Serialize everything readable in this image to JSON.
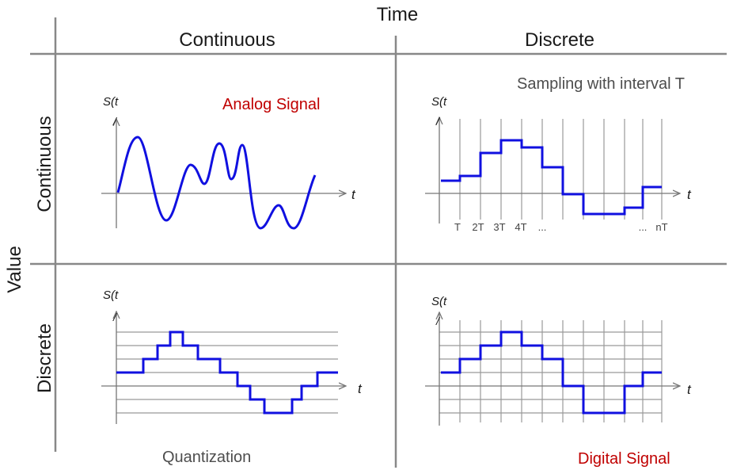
{
  "header": {
    "time_label": "Time",
    "value_label": "Value",
    "col_continuous": "Continuous",
    "col_discrete": "Discrete",
    "row_continuous": "Continuous",
    "row_discrete": "Discrete"
  },
  "panels": {
    "analog": {
      "title": "Analog Signal",
      "y_axis": "S(t",
      "x_axis": "t"
    },
    "sampling": {
      "title": "Sampling with interval T",
      "y_axis": "S(t",
      "x_axis": "t",
      "tick_labels": [
        "T",
        "2T",
        "3T",
        "4T",
        "...",
        "...",
        "nT"
      ]
    },
    "quantization": {
      "title": "Quantization",
      "y_axis": "S(t",
      "x_axis": "t"
    },
    "digital": {
      "title": "Digital Signal",
      "y_axis": "S(t",
      "x_axis": "t"
    }
  },
  "colors": {
    "signal": "#1010e0",
    "grid": "#999999",
    "divider": "#888888",
    "accent": "#c00000"
  }
}
